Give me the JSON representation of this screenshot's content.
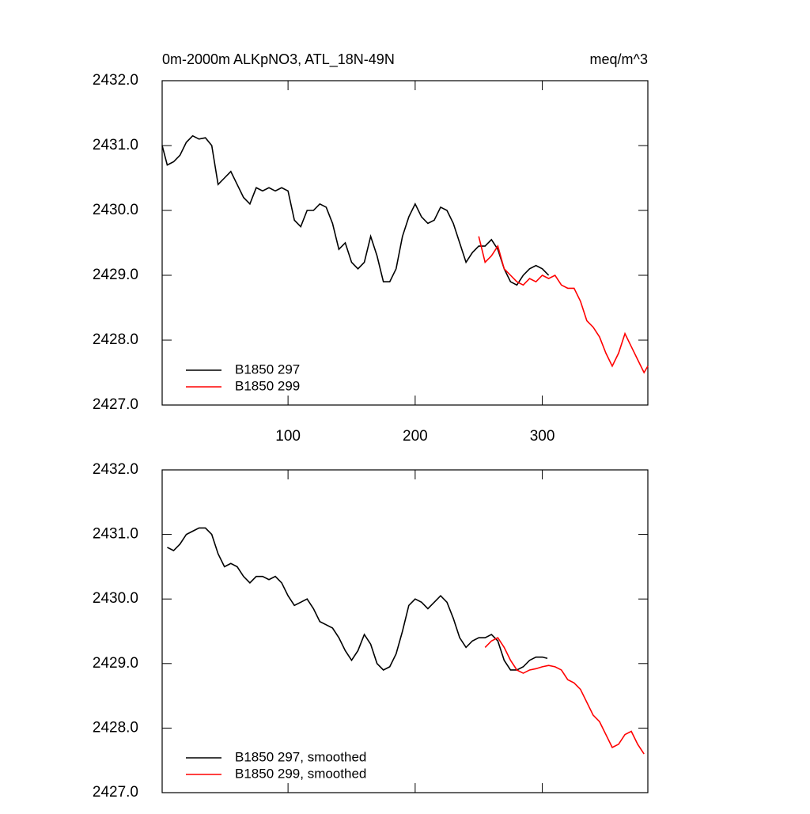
{
  "chart_data": [
    {
      "type": "line",
      "title": "0m-2000m ALKpNO3, ATL_18N-49N",
      "units": "meq/m^3",
      "xlim": [
        1,
        383
      ],
      "xticks": [
        100,
        200,
        300
      ],
      "show_xtick_labels": true,
      "ylim": [
        2427,
        2432
      ],
      "yticks": [
        {
          "value": 2427,
          "label": "2427.0"
        },
        {
          "value": 2428,
          "label": "2428.0"
        },
        {
          "value": 2429,
          "label": "2429.0"
        },
        {
          "value": 2430,
          "label": "2430.0"
        },
        {
          "value": 2431,
          "label": "2431.0"
        },
        {
          "value": 2432,
          "label": "2432.0"
        }
      ],
      "legend": "lower left",
      "series": [
        {
          "name": "B1850 297",
          "color": "#000000",
          "x": [
            1,
            5,
            10,
            15,
            20,
            25,
            30,
            35,
            40,
            45,
            50,
            55,
            60,
            65,
            70,
            75,
            80,
            85,
            90,
            95,
            100,
            105,
            110,
            115,
            120,
            125,
            130,
            135,
            140,
            145,
            150,
            155,
            160,
            165,
            170,
            175,
            180,
            185,
            190,
            195,
            200,
            205,
            210,
            215,
            220,
            225,
            230,
            235,
            240,
            245,
            250,
            255,
            260,
            265,
            270,
            275,
            280,
            285,
            290,
            295,
            300,
            305
          ],
          "values": [
            2431.0,
            2430.7,
            2430.75,
            2430.85,
            2431.05,
            2431.15,
            2431.1,
            2431.12,
            2431.0,
            2430.4,
            2430.5,
            2430.6,
            2430.4,
            2430.2,
            2430.1,
            2430.35,
            2430.3,
            2430.35,
            2430.3,
            2430.35,
            2430.3,
            2429.85,
            2429.75,
            2430.0,
            2430.0,
            2430.1,
            2430.05,
            2429.8,
            2429.4,
            2429.5,
            2429.2,
            2429.1,
            2429.2,
            2429.6,
            2429.3,
            2428.9,
            2428.9,
            2429.1,
            2429.6,
            2429.9,
            2430.1,
            2429.9,
            2429.8,
            2429.85,
            2430.05,
            2430.0,
            2429.8,
            2429.5,
            2429.2,
            2429.35,
            2429.45,
            2429.45,
            2429.55,
            2429.4,
            2429.1,
            2428.9,
            2428.85,
            2429.0,
            2429.1,
            2429.15,
            2429.1,
            2429.0
          ]
        },
        {
          "name": "B1850 299",
          "color": "#ff0000",
          "x": [
            250,
            255,
            260,
            265,
            270,
            275,
            280,
            285,
            290,
            295,
            300,
            305,
            310,
            315,
            320,
            325,
            330,
            335,
            340,
            345,
            350,
            355,
            360,
            365,
            370,
            375,
            380,
            383
          ],
          "values": [
            2429.6,
            2429.2,
            2429.3,
            2429.45,
            2429.1,
            2429.0,
            2428.9,
            2428.85,
            2428.95,
            2428.9,
            2429.0,
            2428.95,
            2429.0,
            2428.85,
            2428.8,
            2428.8,
            2428.6,
            2428.3,
            2428.2,
            2428.05,
            2427.8,
            2427.6,
            2427.8,
            2428.1,
            2427.9,
            2427.7,
            2427.5,
            2427.6
          ]
        }
      ]
    },
    {
      "type": "line",
      "xlim": [
        1,
        383
      ],
      "xticks": [
        100,
        200,
        300
      ],
      "show_xtick_labels": false,
      "ylim": [
        2427,
        2432
      ],
      "yticks": [
        {
          "value": 2427,
          "label": "2427.0"
        },
        {
          "value": 2428,
          "label": "2428.0"
        },
        {
          "value": 2429,
          "label": "2429.0"
        },
        {
          "value": 2430,
          "label": "2430.0"
        },
        {
          "value": 2431,
          "label": "2431.0"
        },
        {
          "value": 2432,
          "label": "2432.0"
        }
      ],
      "legend": "lower left",
      "series": [
        {
          "name": "B1850 297, smoothed",
          "color": "#000000",
          "x": [
            5,
            10,
            15,
            20,
            25,
            30,
            35,
            40,
            45,
            50,
            55,
            60,
            65,
            70,
            75,
            80,
            85,
            90,
            95,
            100,
            105,
            110,
            115,
            120,
            125,
            130,
            135,
            140,
            145,
            150,
            155,
            160,
            165,
            170,
            175,
            180,
            185,
            190,
            195,
            200,
            205,
            210,
            215,
            220,
            225,
            230,
            235,
            240,
            245,
            250,
            255,
            260,
            265,
            270,
            275,
            280,
            285,
            290,
            295,
            300,
            304
          ],
          "values": [
            2430.8,
            2430.75,
            2430.85,
            2431.0,
            2431.05,
            2431.1,
            2431.1,
            2431.0,
            2430.7,
            2430.5,
            2430.55,
            2430.5,
            2430.35,
            2430.25,
            2430.35,
            2430.35,
            2430.3,
            2430.35,
            2430.25,
            2430.05,
            2429.9,
            2429.95,
            2430.0,
            2429.85,
            2429.65,
            2429.6,
            2429.55,
            2429.4,
            2429.2,
            2429.05,
            2429.2,
            2429.45,
            2429.3,
            2429.0,
            2428.9,
            2428.95,
            2429.15,
            2429.5,
            2429.9,
            2430.0,
            2429.95,
            2429.85,
            2429.95,
            2430.05,
            2429.95,
            2429.7,
            2429.4,
            2429.25,
            2429.35,
            2429.4,
            2429.4,
            2429.45,
            2429.35,
            2429.05,
            2428.9,
            2428.9,
            2428.95,
            2429.05,
            2429.1,
            2429.1,
            2429.08
          ]
        },
        {
          "name": "B1850 299, smoothed",
          "color": "#ff0000",
          "x": [
            255,
            260,
            265,
            270,
            275,
            280,
            285,
            290,
            295,
            300,
            305,
            310,
            315,
            320,
            325,
            330,
            335,
            340,
            345,
            350,
            355,
            360,
            365,
            370,
            375,
            380
          ],
          "values": [
            2429.25,
            2429.35,
            2429.4,
            2429.25,
            2429.05,
            2428.9,
            2428.85,
            2428.9,
            2428.92,
            2428.95,
            2428.97,
            2428.95,
            2428.9,
            2428.75,
            2428.7,
            2428.6,
            2428.4,
            2428.2,
            2428.1,
            2427.9,
            2427.7,
            2427.75,
            2427.9,
            2427.95,
            2427.75,
            2427.6
          ]
        }
      ]
    }
  ]
}
